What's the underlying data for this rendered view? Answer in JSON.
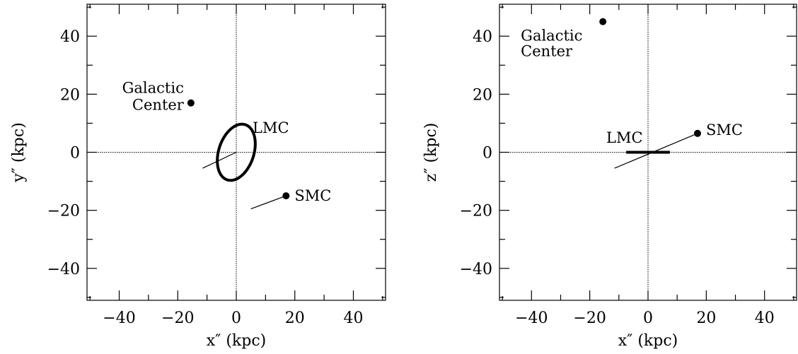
{
  "chart_data": [
    {
      "type": "scatter",
      "xlabel": "x″ (kpc)",
      "ylabel": "y″ (kpc)",
      "xlim": [
        -51,
        51
      ],
      "ylim": [
        -51,
        51
      ],
      "xticks": [
        -40,
        -20,
        0,
        20,
        40
      ],
      "yticks": [
        -40,
        -20,
        0,
        20,
        40
      ],
      "xtick_labels": [
        "−40",
        "−20",
        "0",
        "20",
        "40"
      ],
      "ytick_labels": [
        "−40",
        "−20",
        "0",
        "20",
        "40"
      ],
      "zero_lines": true,
      "points": [
        {
          "label": "Galactic\nCenter",
          "x": -15.5,
          "y": 17.0
        },
        {
          "label": "SMC",
          "x": 17.0,
          "y": -15.0
        }
      ],
      "segments": [
        {
          "x1": 0,
          "y1": 0,
          "x2": -11.5,
          "y2": -5.5
        },
        {
          "x1": 17.0,
          "y1": -15.0,
          "x2": 5.0,
          "y2": -19.5
        }
      ],
      "ellipse": {
        "label": "LMC",
        "cx": 0,
        "cy": 0,
        "semi_major": 10.0,
        "semi_minor": 6.0,
        "angle_deg": 72
      }
    },
    {
      "type": "scatter",
      "xlabel": "x″ (kpc)",
      "ylabel": "z″ (kpc)",
      "xlim": [
        -51,
        51
      ],
      "ylim": [
        -51,
        51
      ],
      "xticks": [
        -40,
        -20,
        0,
        20,
        40
      ],
      "yticks": [
        -40,
        -20,
        0,
        20,
        40
      ],
      "xtick_labels": [
        "−40",
        "−20",
        "0",
        "20",
        "40"
      ],
      "ytick_labels": [
        "−40",
        "−20",
        "0",
        "20",
        "40"
      ],
      "zero_lines": true,
      "points": [
        {
          "label": "Galactic\nCenter",
          "x": -15.5,
          "y": 45.0
        },
        {
          "label": "SMC",
          "x": 17.0,
          "y": 6.5
        }
      ],
      "segments": [
        {
          "x1": 17.0,
          "y1": 6.5,
          "x2": -11.5,
          "y2": -5.5
        }
      ],
      "bar": {
        "label": "LMC",
        "x1": -7.5,
        "x2": 7.5,
        "y": 0
      }
    }
  ]
}
